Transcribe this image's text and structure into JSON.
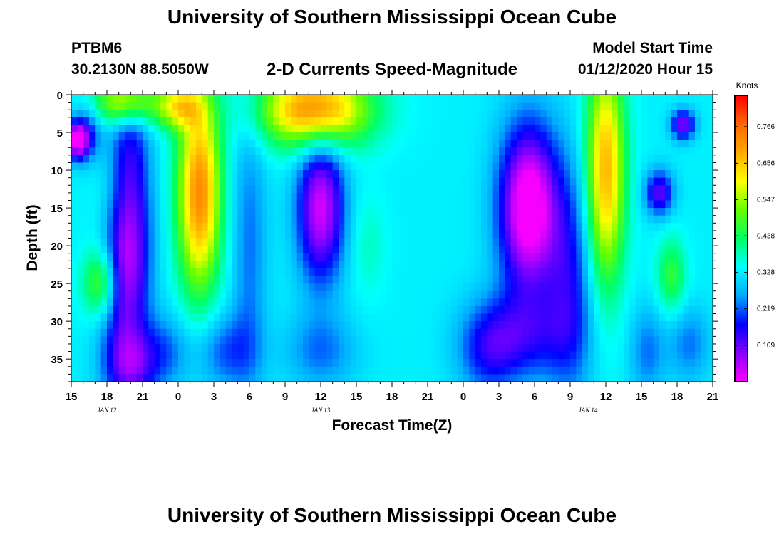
{
  "header": {
    "title": "University of Southern Mississippi Ocean Cube",
    "station": "PTBM6",
    "coords": "30.2130N 88.5050W",
    "plot_title": "2-D Currents Speed-Magnitude",
    "model_label": "Model Start Time",
    "model_time": "01/12/2020 Hour 15"
  },
  "footer": {
    "title": "University of Southern Mississippi Ocean Cube"
  },
  "chart_data": {
    "type": "heatmap",
    "xlabel": "Forecast Time(Z)",
    "ylabel": "Depth (ft)",
    "colorbar_label": "Knots",
    "x_range_hours": [
      0,
      54
    ],
    "y_range": [
      0,
      38
    ],
    "x_ticks": [
      "15",
      "18",
      "21",
      "0",
      "3",
      "6",
      "9",
      "12",
      "15",
      "18",
      "21",
      "0",
      "3",
      "6",
      "9",
      "12",
      "15",
      "18",
      "21"
    ],
    "y_ticks": [
      0,
      5,
      10,
      15,
      20,
      25,
      30,
      35
    ],
    "date_labels": [
      {
        "label": "JAN 12",
        "x_hour": 3
      },
      {
        "label": "JAN 13",
        "x_hour": 21
      },
      {
        "label": "JAN 14",
        "x_hour": 43.5
      }
    ],
    "colorbar_range": [
      0,
      0.86
    ],
    "colorbar_ticks": [
      0.109,
      0.219,
      0.328,
      0.438,
      0.547,
      0.656,
      0.766
    ],
    "colorbar_tick_labels": [
      "0.109",
      "0.219",
      "0.328",
      "0.438",
      "0.547",
      "0.656",
      "0.766"
    ],
    "colormap": [
      "#ff00ff",
      "#8800ff",
      "#0000ff",
      "#00aaff",
      "#00ffff",
      "#00ff66",
      "#66ff00",
      "#ffff00",
      "#ffaa00",
      "#ff6600",
      "#ff0000"
    ],
    "grid": false
  }
}
